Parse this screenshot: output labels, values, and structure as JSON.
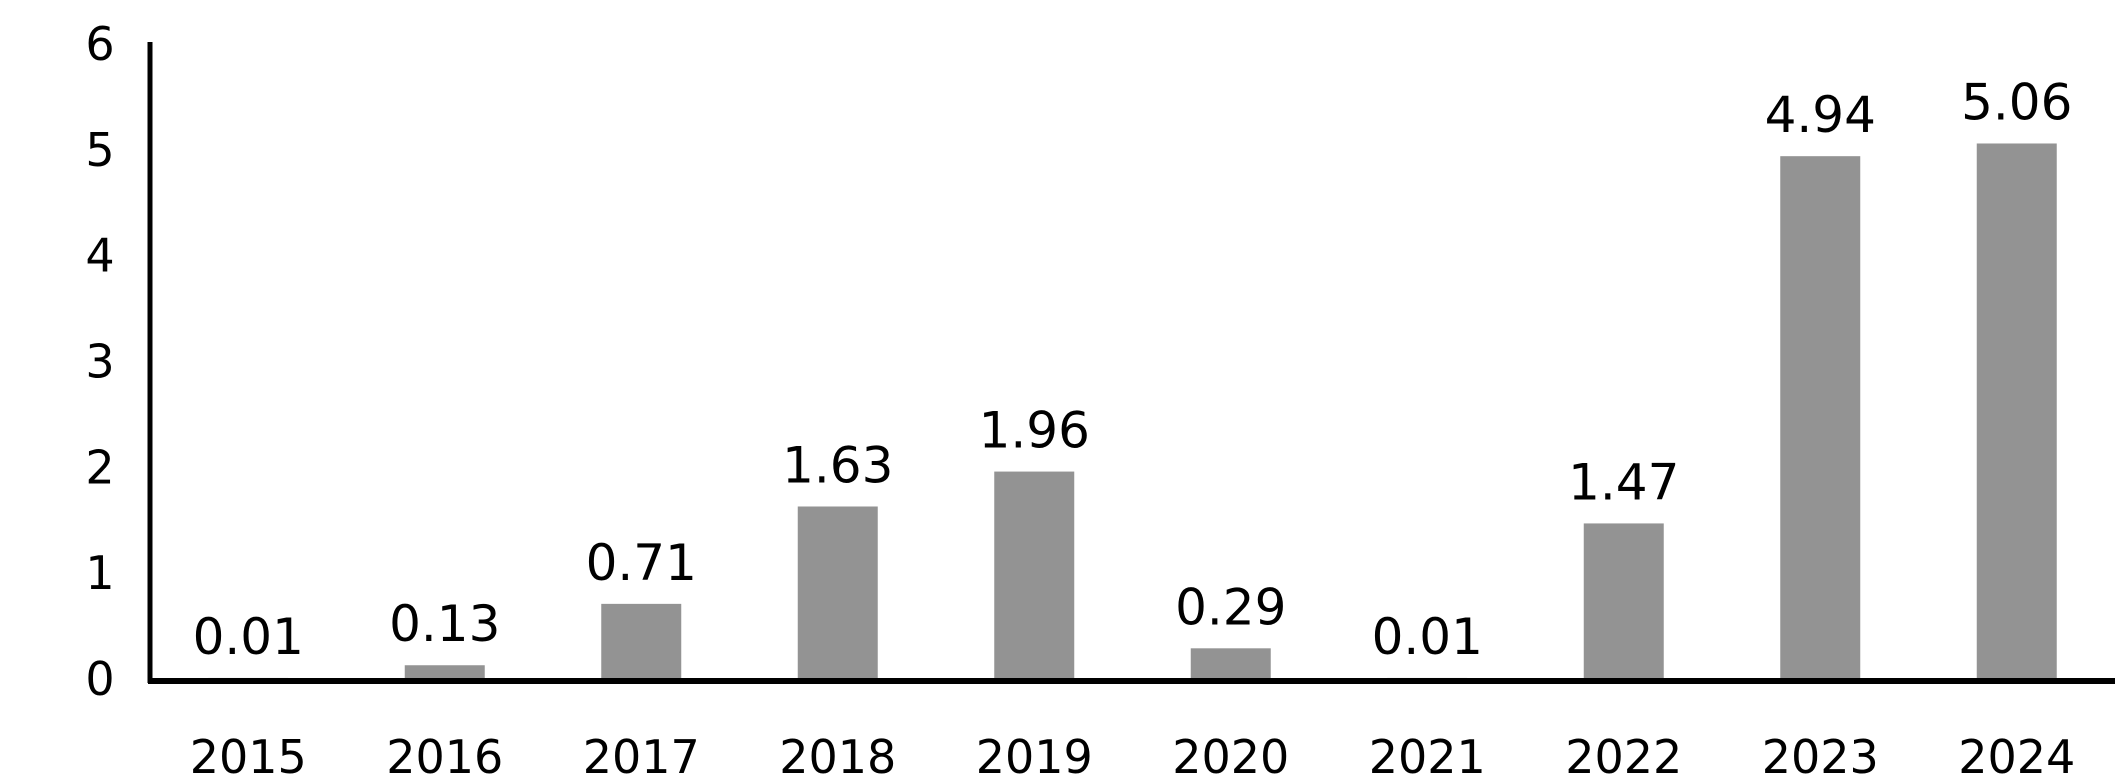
{
  "chart_data": {
    "type": "bar",
    "title": "",
    "xlabel": "",
    "ylabel": "",
    "categories": [
      "2015",
      "2016",
      "2017",
      "2018",
      "2019",
      "2020",
      "2021",
      "2022",
      "2023",
      "2024"
    ],
    "values": [
      0.01,
      0.13,
      0.71,
      1.63,
      1.96,
      0.29,
      0.01,
      1.47,
      4.94,
      5.06
    ],
    "data_labels": [
      "0.01",
      "0.13",
      "0.71",
      "1.63",
      "1.96",
      "0.29",
      "0.01",
      "1.47",
      "4.94",
      "5.06"
    ],
    "ylim": [
      0,
      6
    ],
    "yticks": [
      "0",
      "1",
      "2",
      "3",
      "4",
      "5",
      "6"
    ],
    "grid": false,
    "legend": "none",
    "bar_color": "#939393",
    "axis_color": "#000000"
  }
}
